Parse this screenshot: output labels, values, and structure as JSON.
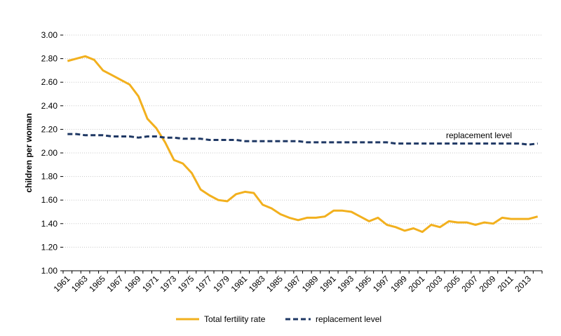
{
  "chart_data": {
    "type": "line",
    "title": "",
    "xlabel": "",
    "ylabel": "children per woman",
    "ylim": [
      1.0,
      3.0
    ],
    "y_ticks": [
      "1.00",
      "1.20",
      "1.40",
      "1.60",
      "1.80",
      "2.00",
      "2.20",
      "2.40",
      "2.60",
      "2.80",
      "3.00"
    ],
    "x": [
      1961,
      1962,
      1963,
      1964,
      1965,
      1966,
      1967,
      1968,
      1969,
      1970,
      1971,
      1972,
      1973,
      1974,
      1975,
      1976,
      1977,
      1978,
      1979,
      1980,
      1981,
      1982,
      1983,
      1984,
      1985,
      1986,
      1987,
      1988,
      1989,
      1990,
      1991,
      1992,
      1993,
      1994,
      1995,
      1996,
      1997,
      1998,
      1999,
      2000,
      2001,
      2002,
      2003,
      2004,
      2005,
      2006,
      2007,
      2008,
      2009,
      2010,
      2011,
      2012,
      2013,
      2014
    ],
    "x_tick_labels": [
      "1961",
      "1963",
      "1965",
      "1967",
      "1969",
      "1971",
      "1973",
      "1975",
      "1977",
      "1979",
      "1981",
      "1983",
      "1985",
      "1987",
      "1989",
      "1991",
      "1993",
      "1995",
      "1997",
      "1999",
      "2001",
      "2003",
      "2005",
      "2007",
      "2009",
      "2011",
      "2013"
    ],
    "grid": "horizontal",
    "legend_position": "bottom",
    "series": [
      {
        "name": "Total fertility rate",
        "color": "#F2B01E",
        "style": "solid",
        "values": [
          2.78,
          2.8,
          2.82,
          2.79,
          2.7,
          2.66,
          2.62,
          2.58,
          2.48,
          2.29,
          2.21,
          2.09,
          1.94,
          1.91,
          1.83,
          1.69,
          1.64,
          1.6,
          1.59,
          1.65,
          1.67,
          1.66,
          1.56,
          1.53,
          1.48,
          1.45,
          1.43,
          1.45,
          1.45,
          1.46,
          1.51,
          1.51,
          1.5,
          1.46,
          1.42,
          1.45,
          1.39,
          1.37,
          1.34,
          1.36,
          1.33,
          1.39,
          1.37,
          1.42,
          1.41,
          1.41,
          1.39,
          1.41,
          1.4,
          1.45,
          1.44,
          1.44,
          1.44,
          1.46
        ]
      },
      {
        "name": "replacement level",
        "color": "#1F3864",
        "style": "dashed",
        "values": [
          2.16,
          2.16,
          2.15,
          2.15,
          2.15,
          2.14,
          2.14,
          2.14,
          2.13,
          2.14,
          2.14,
          2.13,
          2.13,
          2.12,
          2.12,
          2.12,
          2.11,
          2.11,
          2.11,
          2.11,
          2.1,
          2.1,
          2.1,
          2.1,
          2.1,
          2.1,
          2.1,
          2.09,
          2.09,
          2.09,
          2.09,
          2.09,
          2.09,
          2.09,
          2.09,
          2.09,
          2.09,
          2.08,
          2.08,
          2.08,
          2.08,
          2.08,
          2.08,
          2.08,
          2.08,
          2.08,
          2.08,
          2.08,
          2.08,
          2.08,
          2.08,
          2.08,
          2.07,
          2.08
        ]
      }
    ],
    "annotations": [
      {
        "text": "replacement level"
      }
    ]
  }
}
